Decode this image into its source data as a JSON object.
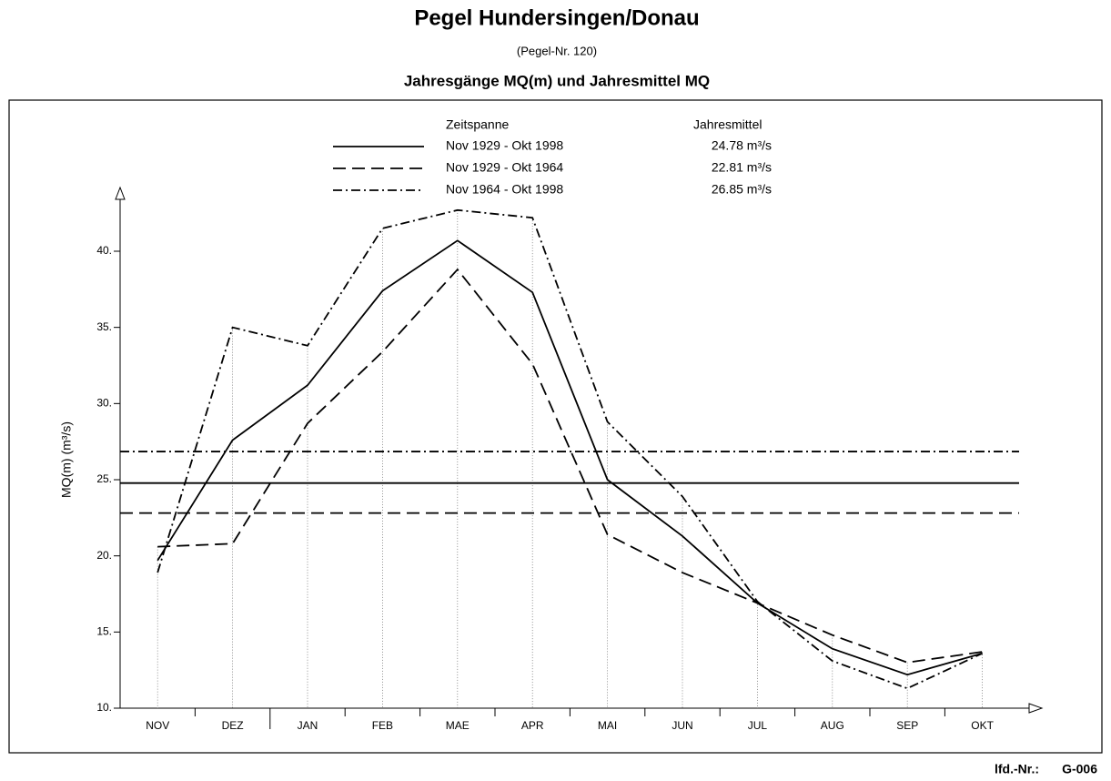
{
  "chart_data": {
    "type": "line",
    "title": "Pegel Hundersingen/Donau",
    "subtitle": "(Pegel-Nr. 120)",
    "chart_title": "Jahresgänge MQ(m) und Jahresmittel MQ",
    "ylabel": "MQ(m) (m³/s)",
    "legend_headers": [
      "Zeitspanne",
      "Jahresmittel"
    ],
    "categories": [
      "NOV",
      "DEZ",
      "JAN",
      "FEB",
      "MAE",
      "APR",
      "MAI",
      "JUN",
      "JUL",
      "AUG",
      "SEP",
      "OKT"
    ],
    "series": [
      {
        "name": "Nov 1929 - Okt 1998",
        "color": "#000000",
        "style": "solid",
        "mean": 24.78,
        "mean_label": "24.78 m³/s",
        "values": [
          19.7,
          27.6,
          31.2,
          37.4,
          40.7,
          37.3,
          25.0,
          21.3,
          16.9,
          13.9,
          12.2,
          13.6
        ]
      },
      {
        "name": "Nov 1929 - Okt 1964",
        "color": "#000000",
        "style": "dashed",
        "mean": 22.81,
        "mean_label": "22.81 m³/s",
        "values": [
          20.6,
          20.8,
          28.7,
          33.4,
          38.8,
          32.6,
          21.4,
          18.9,
          16.9,
          14.8,
          13.0,
          13.7
        ]
      },
      {
        "name": "Nov 1964 - Okt 1998",
        "color": "#000000",
        "style": "dashdot",
        "mean": 26.85,
        "mean_label": "26.85 m³/s",
        "values": [
          18.9,
          35.0,
          33.8,
          41.5,
          42.7,
          42.2,
          28.8,
          23.9,
          17.0,
          13.1,
          11.3,
          13.6
        ]
      }
    ],
    "ylim": [
      10,
      44
    ],
    "yticks": [
      {
        "value": 10,
        "label": "10."
      },
      {
        "value": 15,
        "label": "15."
      },
      {
        "value": 20,
        "label": "20."
      },
      {
        "value": 25,
        "label": "25."
      },
      {
        "value": 30,
        "label": "30."
      },
      {
        "value": 35,
        "label": "35."
      },
      {
        "value": 40,
        "label": "40."
      }
    ]
  },
  "footer": {
    "label": "lfd.-Nr.:",
    "value": "G-006"
  }
}
